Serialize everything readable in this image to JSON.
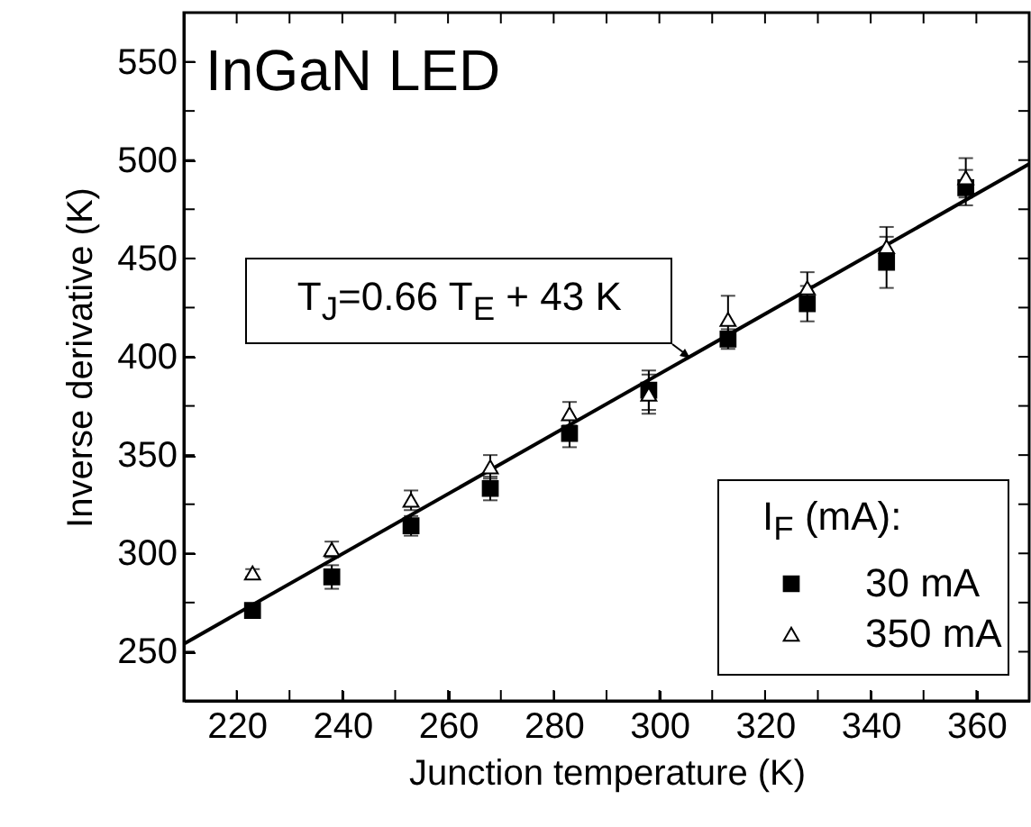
{
  "chart_data": {
    "type": "scatter",
    "title": "InGaN LED",
    "xlabel": "Junction temperature (K)",
    "ylabel": "Inverse derivative (K)",
    "legend_title": "I$_{F}$ (mA):",
    "legend": "bottom right",
    "grid": false,
    "xlim": [
      210,
      370
    ],
    "xticks": [
      220,
      {
        "value": 230,
        "label": null
      },
      240,
      {
        "value": 250,
        "label": null
      },
      260,
      {
        "value": 270,
        "label": null
      },
      280,
      {
        "value": 290,
        "label": null
      },
      300,
      {
        "value": 310,
        "label": null
      },
      320,
      {
        "value": 330,
        "label": null
      },
      340,
      {
        "value": 350,
        "label": null
      },
      360
    ],
    "ylim": [
      225,
      575
    ],
    "yticks": [
      250,
      {
        "value": 275,
        "label": null
      },
      300,
      {
        "value": 325,
        "label": null
      },
      350,
      {
        "value": 375,
        "label": null
      },
      400,
      {
        "value": 425,
        "label": null
      },
      450,
      {
        "value": 475,
        "label": null
      },
      500,
      {
        "value": 525,
        "label": null
      },
      550
    ],
    "x": [
      223,
      238,
      253,
      268,
      283,
      298,
      313,
      328,
      343,
      358
    ],
    "annotations": [
      {
        "text": "T$_{J}$=0.66 T$_{E}$ + 43 K",
        "x": 306,
        "y": 400
      }
    ],
    "series": [
      {
        "name": "30 mA",
        "color": "#000000",
        "marker": "square",
        "values": [
          271,
          288,
          314,
          333,
          361,
          383,
          409,
          427,
          448,
          486
        ],
        "errors": [
          2,
          6,
          5,
          6,
          7,
          10,
          5,
          9,
          13,
          9
        ]
      },
      {
        "name": "350 mA",
        "color": "#000000",
        "marker": "triangle",
        "values": [
          290,
          302,
          327,
          344,
          371,
          381,
          419,
          435,
          456,
          491
        ],
        "errors": [
          2,
          4,
          5,
          6,
          6,
          10,
          12,
          8,
          10,
          10
        ]
      },
      {
        "type": "line",
        "color": "#000000",
        "marker": "none",
        "x": [
          210,
          370
        ],
        "values": [
          254,
          498
        ]
      }
    ]
  }
}
